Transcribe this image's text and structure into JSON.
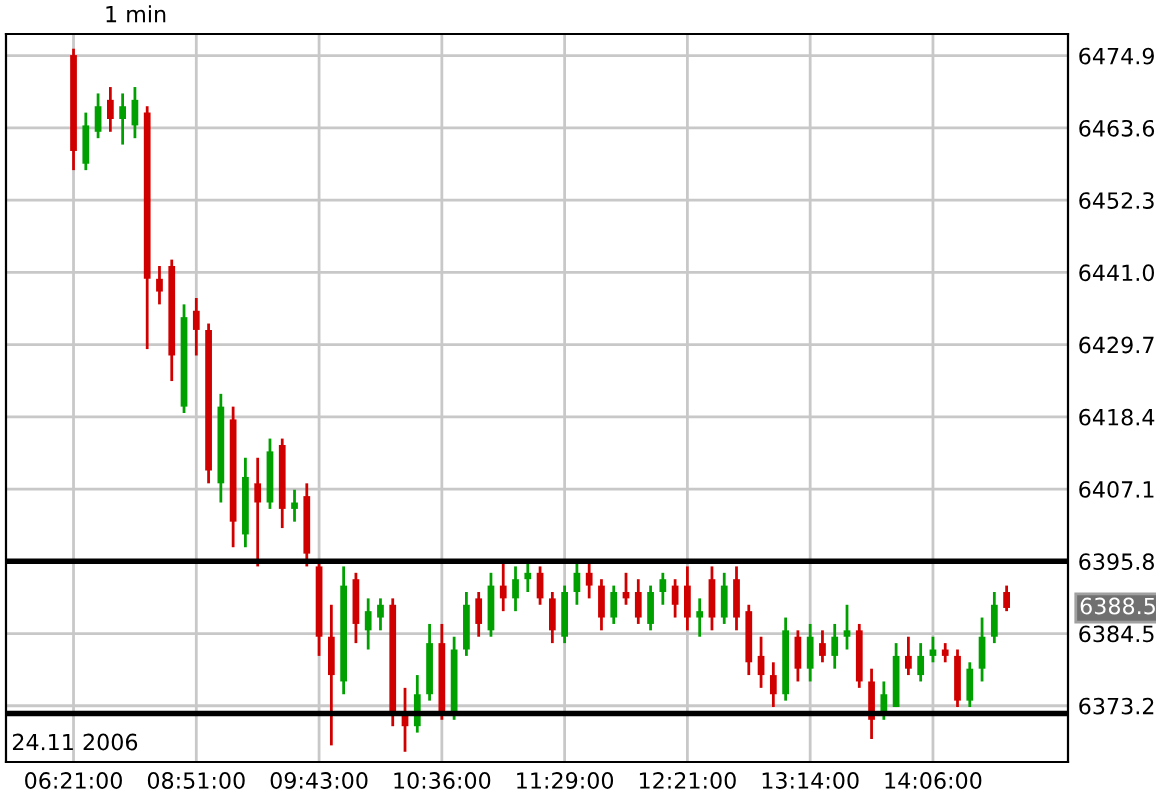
{
  "chart_data": {
    "type": "candlestick",
    "title": "1 min",
    "categories": [
      "06:21:00",
      null,
      null,
      null,
      null,
      null,
      null,
      null,
      null,
      null,
      "08:51:00",
      null,
      null,
      null,
      null,
      null,
      null,
      null,
      null,
      null,
      "09:43:00",
      null,
      null,
      null,
      null,
      null,
      null,
      null,
      null,
      null,
      "10:36:00",
      null,
      null,
      null,
      null,
      null,
      null,
      null,
      null,
      null,
      "11:29:00",
      null,
      null,
      null,
      null,
      null,
      null,
      null,
      null,
      null,
      "12:21:00",
      null,
      null,
      null,
      null,
      null,
      null,
      null,
      null,
      null,
      "13:14:00",
      null,
      null,
      null,
      null,
      null,
      null,
      null,
      null,
      null,
      "14:06:00",
      null,
      null,
      null,
      null,
      null,
      null
    ],
    "ohlc": [
      [
        6475,
        6476,
        6457,
        6460
      ],
      [
        6458,
        6466,
        6457,
        6464
      ],
      [
        6463,
        6469,
        6462,
        6467
      ],
      [
        6468,
        6470,
        6463,
        6465
      ],
      [
        6465,
        6469,
        6461,
        6467
      ],
      [
        6464,
        6470,
        6462,
        6468
      ],
      [
        6466,
        6467,
        6429,
        6440
      ],
      [
        6440,
        6442,
        6436,
        6438
      ],
      [
        6442,
        6443,
        6424,
        6428
      ],
      [
        6420,
        6436,
        6419,
        6434
      ],
      [
        6435,
        6437,
        6428,
        6432
      ],
      [
        6432,
        6433,
        6408,
        6410
      ],
      [
        6408,
        6422,
        6405,
        6420
      ],
      [
        6418,
        6420,
        6398,
        6402
      ],
      [
        6400,
        6412,
        6398,
        6409
      ],
      [
        6408,
        6412,
        6395,
        6405
      ],
      [
        6405,
        6415,
        6404,
        6413
      ],
      [
        6414,
        6415,
        6401,
        6404
      ],
      [
        6404,
        6407,
        6402,
        6405
      ],
      [
        6406,
        6408,
        6395,
        6397
      ],
      [
        6395,
        6396,
        6381,
        6384
      ],
      [
        6384,
        6389,
        6367,
        6378
      ],
      [
        6377,
        6395,
        6375,
        6392
      ],
      [
        6393,
        6394,
        6383,
        6386
      ],
      [
        6385,
        6390,
        6382,
        6388
      ],
      [
        6387,
        6390,
        6385,
        6389
      ],
      [
        6389,
        6390,
        6370,
        6372
      ],
      [
        6372,
        6376,
        6366,
        6370
      ],
      [
        6370,
        6378,
        6369,
        6375
      ],
      [
        6375,
        6386,
        6374,
        6383
      ],
      [
        6383,
        6386,
        6371,
        6372
      ],
      [
        6372,
        6384,
        6371,
        6382
      ],
      [
        6382,
        6391,
        6381,
        6389
      ],
      [
        6390,
        6391,
        6384,
        6386
      ],
      [
        6385,
        6394,
        6384,
        6392
      ],
      [
        6392,
        6396,
        6388,
        6390
      ],
      [
        6390,
        6395,
        6388,
        6393
      ],
      [
        6393,
        6396,
        6391,
        6394
      ],
      [
        6394,
        6395,
        6389,
        6390
      ],
      [
        6390,
        6391,
        6383,
        6385
      ],
      [
        6384,
        6392,
        6383,
        6391
      ],
      [
        6391,
        6396,
        6389,
        6394
      ],
      [
        6394,
        6396,
        6390,
        6392
      ],
      [
        6392,
        6393,
        6385,
        6387
      ],
      [
        6387,
        6392,
        6386,
        6391
      ],
      [
        6391,
        6394,
        6389,
        6390
      ],
      [
        6391,
        6393,
        6386,
        6387
      ],
      [
        6386,
        6392,
        6385,
        6391
      ],
      [
        6391,
        6394,
        6389,
        6393
      ],
      [
        6392,
        6393,
        6387,
        6389
      ],
      [
        6392,
        6395,
        6385,
        6387
      ],
      [
        6387,
        6390,
        6384,
        6388
      ],
      [
        6393,
        6395,
        6385,
        6387
      ],
      [
        6387,
        6394,
        6386,
        6392
      ],
      [
        6393,
        6395,
        6385,
        6387
      ],
      [
        6388,
        6389,
        6378,
        6380
      ],
      [
        6381,
        6384,
        6376,
        6378
      ],
      [
        6378,
        6380,
        6373,
        6375
      ],
      [
        6375,
        6387,
        6374,
        6385
      ],
      [
        6384,
        6385,
        6377,
        6379
      ],
      [
        6379,
        6386,
        6377,
        6384
      ],
      [
        6383,
        6385,
        6380,
        6381
      ],
      [
        6381,
        6386,
        6379,
        6384
      ],
      [
        6384,
        6389,
        6382,
        6385
      ],
      [
        6385,
        6386,
        6376,
        6377
      ],
      [
        6377,
        6379,
        6368,
        6371
      ],
      [
        6372,
        6377,
        6371,
        6375
      ],
      [
        6373,
        6383,
        6373,
        6381
      ],
      [
        6381,
        6384,
        6378,
        6379
      ],
      [
        6378,
        6383,
        6377,
        6381
      ],
      [
        6381,
        6384,
        6380,
        6382
      ],
      [
        6382,
        6383,
        6380,
        6381
      ],
      [
        6381,
        6382,
        6373,
        6374
      ],
      [
        6374,
        6380,
        6373,
        6379
      ],
      [
        6379,
        6387,
        6377,
        6384
      ],
      [
        6384,
        6391,
        6383,
        6389
      ],
      [
        6391,
        6392,
        6388,
        6388.5
      ]
    ],
    "colors": [
      "#d00000",
      "#00a000",
      "#00a000",
      "#d00000",
      "#00a000",
      "#00a000",
      "#d00000",
      "#d00000",
      "#d00000",
      "#00a000",
      "#d00000",
      "#d00000",
      "#00a000",
      "#d00000",
      "#00a000",
      "#d00000",
      "#00a000",
      "#d00000",
      "#00a000",
      "#d00000",
      "#d00000",
      "#d00000",
      "#00a000",
      "#d00000",
      "#00a000",
      "#00a000",
      "#d00000",
      "#d00000",
      "#00a000",
      "#00a000",
      "#d00000",
      "#00a000",
      "#00a000",
      "#d00000",
      "#00a000",
      "#d00000",
      "#00a000",
      "#00a000",
      "#d00000",
      "#d00000",
      "#00a000",
      "#00a000",
      "#d00000",
      "#d00000",
      "#00a000",
      "#d00000",
      "#d00000",
      "#00a000",
      "#00a000",
      "#d00000",
      "#d00000",
      "#00a000",
      "#d00000",
      "#00a000",
      "#d00000",
      "#d00000",
      "#d00000",
      "#d00000",
      "#00a000",
      "#d00000",
      "#00a000",
      "#d00000",
      "#00a000",
      "#00a000",
      "#d00000",
      "#d00000",
      "#00a000",
      "#00a000",
      "#d00000",
      "#00a000",
      "#00a000",
      "#d00000",
      "#d00000",
      "#00a000",
      "#00a000",
      "#00a000",
      "#d00000"
    ],
    "ylim": [
      6364.4,
      6478.3
    ],
    "yticks": [
      6373.2,
      6384.5,
      6395.8,
      6407.1,
      6418.4,
      6429.7,
      {
        "value": 6441.0,
        "label": "6441.0"
      },
      6452.3,
      6463.6,
      6474.9
    ],
    "ref_lines": [
      {
        "axis": "y",
        "value": 6395.8,
        "color": "#000000"
      },
      {
        "axis": "y",
        "value": 6372,
        "color": "#000000"
      }
    ],
    "annotations": [
      "24.11 2006",
      "6388.5"
    ],
    "grid": true,
    "legend": false
  }
}
